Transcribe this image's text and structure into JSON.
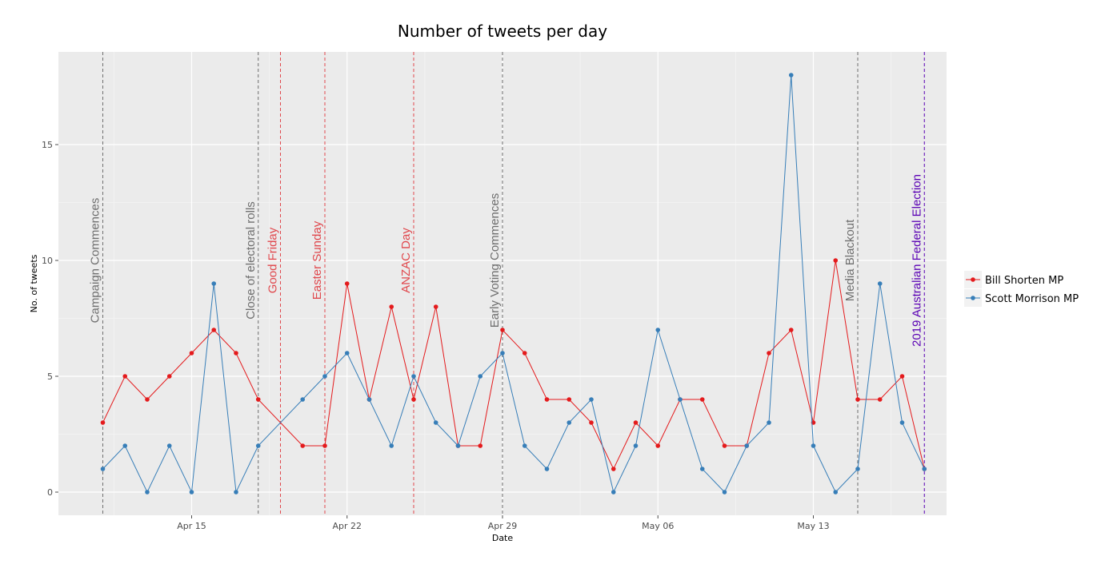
{
  "chart_data": {
    "type": "line",
    "title": "Number of tweets per day",
    "xlabel": "Date",
    "ylabel": "No. of tweets",
    "x_ticks": [
      "Apr 15",
      "Apr 22",
      "Apr 29",
      "May 06",
      "May 13"
    ],
    "y_ticks": [
      "0",
      "5",
      "10",
      "15"
    ],
    "ylim": [
      -1,
      19
    ],
    "xlim": [
      "2019-04-09",
      "2019-05-19"
    ],
    "grid": true,
    "legend_position": "right",
    "series": [
      {
        "name": "Bill Shorten MP",
        "color": "#e41a1c",
        "points": [
          [
            "2019-04-11",
            3
          ],
          [
            "2019-04-12",
            5
          ],
          [
            "2019-04-13",
            4
          ],
          [
            "2019-04-14",
            5
          ],
          [
            "2019-04-15",
            6
          ],
          [
            "2019-04-16",
            7
          ],
          [
            "2019-04-17",
            6
          ],
          [
            "2019-04-18",
            4
          ],
          [
            "2019-04-20",
            2
          ],
          [
            "2019-04-21",
            2
          ],
          [
            "2019-04-22",
            9
          ],
          [
            "2019-04-23",
            4
          ],
          [
            "2019-04-24",
            8
          ],
          [
            "2019-04-25",
            4
          ],
          [
            "2019-04-26",
            8
          ],
          [
            "2019-04-27",
            2
          ],
          [
            "2019-04-28",
            2
          ],
          [
            "2019-04-29",
            7
          ],
          [
            "2019-04-30",
            6
          ],
          [
            "2019-05-01",
            4
          ],
          [
            "2019-05-02",
            4
          ],
          [
            "2019-05-03",
            3
          ],
          [
            "2019-05-04",
            1
          ],
          [
            "2019-05-05",
            3
          ],
          [
            "2019-05-06",
            2
          ],
          [
            "2019-05-07",
            4
          ],
          [
            "2019-05-08",
            4
          ],
          [
            "2019-05-09",
            2
          ],
          [
            "2019-05-10",
            2
          ],
          [
            "2019-05-11",
            6
          ],
          [
            "2019-05-12",
            7
          ],
          [
            "2019-05-13",
            3
          ],
          [
            "2019-05-14",
            10
          ],
          [
            "2019-05-15",
            4
          ],
          [
            "2019-05-16",
            4
          ],
          [
            "2019-05-17",
            5
          ],
          [
            "2019-05-18",
            1
          ]
        ]
      },
      {
        "name": "Scott Morrison MP",
        "color": "#377eb8",
        "points": [
          [
            "2019-04-11",
            1
          ],
          [
            "2019-04-12",
            2
          ],
          [
            "2019-04-13",
            0
          ],
          [
            "2019-04-14",
            2
          ],
          [
            "2019-04-15",
            0
          ],
          [
            "2019-04-16",
            9
          ],
          [
            "2019-04-17",
            0
          ],
          [
            "2019-04-18",
            2
          ],
          [
            "2019-04-20",
            4
          ],
          [
            "2019-04-21",
            5
          ],
          [
            "2019-04-22",
            6
          ],
          [
            "2019-04-23",
            4
          ],
          [
            "2019-04-24",
            2
          ],
          [
            "2019-04-25",
            5
          ],
          [
            "2019-04-26",
            3
          ],
          [
            "2019-04-27",
            2
          ],
          [
            "2019-04-28",
            5
          ],
          [
            "2019-04-29",
            6
          ],
          [
            "2019-04-30",
            2
          ],
          [
            "2019-05-01",
            1
          ],
          [
            "2019-05-02",
            3
          ],
          [
            "2019-05-03",
            4
          ],
          [
            "2019-05-04",
            0
          ],
          [
            "2019-05-05",
            2
          ],
          [
            "2019-05-06",
            7
          ],
          [
            "2019-05-07",
            4
          ],
          [
            "2019-05-08",
            1
          ],
          [
            "2019-05-09",
            0
          ],
          [
            "2019-05-10",
            2
          ],
          [
            "2019-05-11",
            3
          ],
          [
            "2019-05-12",
            18
          ],
          [
            "2019-05-13",
            2
          ],
          [
            "2019-05-14",
            0
          ],
          [
            "2019-05-15",
            1
          ],
          [
            "2019-05-16",
            9
          ],
          [
            "2019-05-17",
            3
          ],
          [
            "2019-05-18",
            1
          ]
        ]
      }
    ],
    "events": [
      {
        "date": "2019-04-11",
        "label": "Campaign Commences",
        "color": "#6e6e6e"
      },
      {
        "date": "2019-04-18",
        "label": "Close of electoral rolls",
        "color": "#6e6e6e"
      },
      {
        "date": "2019-04-19",
        "label": "Good Friday",
        "color": "#e0474c"
      },
      {
        "date": "2019-04-21",
        "label": "Easter Sunday",
        "color": "#e0474c"
      },
      {
        "date": "2019-04-25",
        "label": "ANZAC Day",
        "color": "#e0474c"
      },
      {
        "date": "2019-04-29",
        "label": "Early Voting Commences",
        "color": "#6e6e6e"
      },
      {
        "date": "2019-05-15",
        "label": "Media Blackout",
        "color": "#6e6e6e"
      },
      {
        "date": "2019-05-18",
        "label": "2019 Australian Federal Election",
        "color": "#5a00b4"
      }
    ]
  }
}
